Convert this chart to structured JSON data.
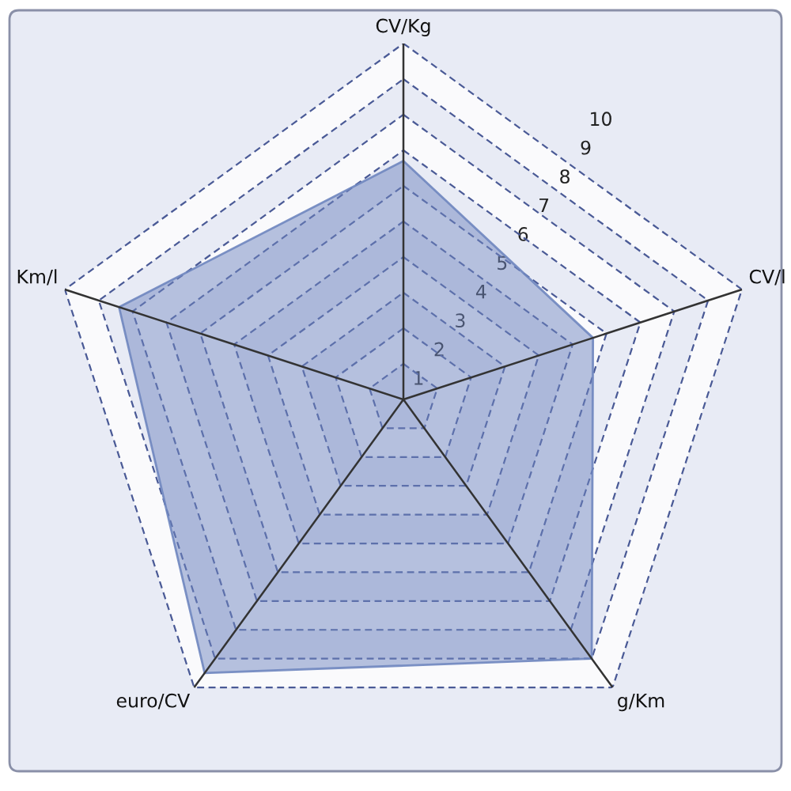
{
  "chart_data": {
    "type": "radar",
    "categories": [
      "CV/Kg",
      "CV/l",
      "g/Km",
      "euro/CV",
      "Km/l"
    ],
    "series": [
      {
        "color": "#6f86bf",
        "values": [
          6.7,
          5.6,
          9.0,
          9.5,
          8.4
        ]
      }
    ],
    "ylim": [
      0,
      10
    ],
    "yticks": [
      1,
      2,
      3,
      4,
      5,
      6,
      7,
      8,
      9,
      10
    ],
    "grid": true
  }
}
